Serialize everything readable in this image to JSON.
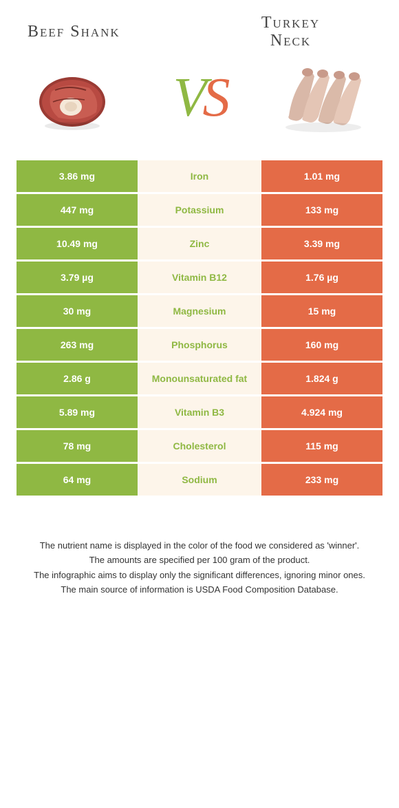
{
  "colors": {
    "left": "#8fb843",
    "right": "#e46b47",
    "mid_bg": "#fdf5ea",
    "text": "#333333",
    "title": "#444444"
  },
  "header": {
    "left_title": "Beef Shank",
    "right_title_line1": "Turkey",
    "right_title_line2": "Neck",
    "vs_v": "V",
    "vs_s": "S"
  },
  "rows": [
    {
      "left": "3.86 mg",
      "label": "Iron",
      "right": "1.01 mg",
      "winner": "left"
    },
    {
      "left": "447 mg",
      "label": "Potassium",
      "right": "133 mg",
      "winner": "left"
    },
    {
      "left": "10.49 mg",
      "label": "Zinc",
      "right": "3.39 mg",
      "winner": "left"
    },
    {
      "left": "3.79 µg",
      "label": "Vitamin B12",
      "right": "1.76 µg",
      "winner": "left"
    },
    {
      "left": "30 mg",
      "label": "Magnesium",
      "right": "15 mg",
      "winner": "left"
    },
    {
      "left": "263 mg",
      "label": "Phosphorus",
      "right": "160 mg",
      "winner": "left"
    },
    {
      "left": "2.86 g",
      "label": "Monounsaturated fat",
      "right": "1.824 g",
      "winner": "left"
    },
    {
      "left": "5.89 mg",
      "label": "Vitamin B3",
      "right": "4.924 mg",
      "winner": "left"
    },
    {
      "left": "78 mg",
      "label": "Cholesterol",
      "right": "115 mg",
      "winner": "left"
    },
    {
      "left": "64 mg",
      "label": "Sodium",
      "right": "233 mg",
      "winner": "left"
    }
  ],
  "footer": {
    "line1": "The nutrient name is displayed in the color of the food we considered as 'winner'.",
    "line2": "The amounts are specified per 100 gram of the product.",
    "line3": "The infographic aims to display only the significant differences, ignoring minor ones.",
    "line4": "The main source of information is USDA Food Composition Database."
  }
}
